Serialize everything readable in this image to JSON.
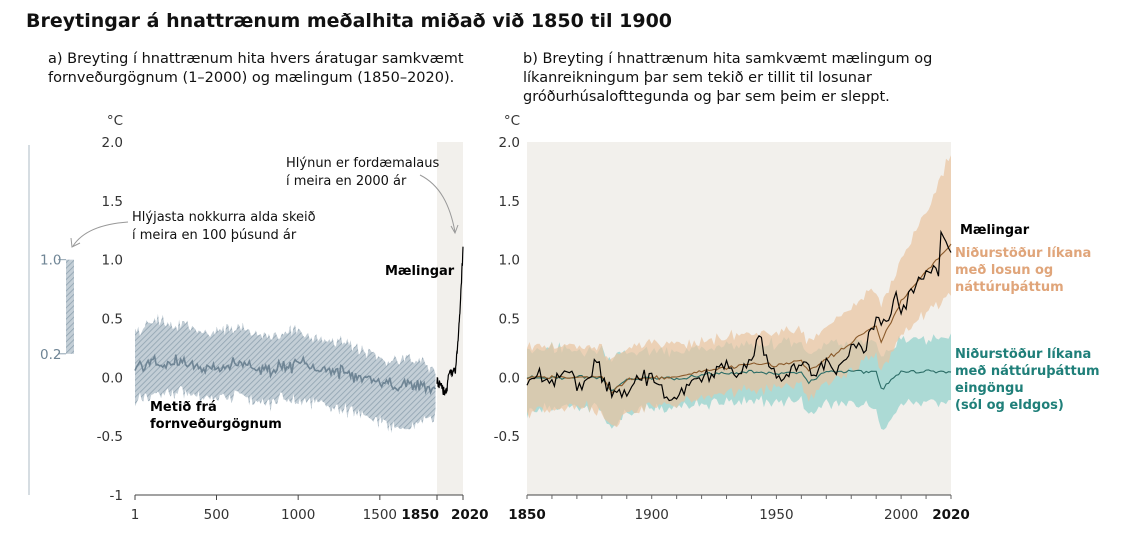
{
  "title": "Breytingar á hnattrænum meðalhita miðað við 1850 til 1900",
  "colors": {
    "proxy": "#8fa2b0",
    "proxy_line": "#6f8595",
    "human": "#e9c39f",
    "human_line": "#8a5a2b",
    "natural": "#8fd0cc",
    "natural_line": "#2b6c66",
    "observed": "#000000",
    "natural_label": "#1f7f79",
    "human_label": "#e0a57a",
    "shade": "#f2f0ec"
  },
  "chart_data": [
    {
      "type": "area",
      "panel": "a",
      "title": "a) Breyting í hnattrænum hita hvers áratugar samkvæmt fornveðurgögnum (1–2000) og mælingum (1850–2020).",
      "ylabel": "°C",
      "ylim": [
        -1,
        2
      ],
      "y_ticks": [
        "2.0",
        "1.5",
        "1.0",
        "0.5",
        "0.0",
        "-0.5",
        "-1"
      ],
      "x_ticks": [
        "1",
        "500",
        "1000",
        "1500",
        "1850",
        "2020"
      ],
      "xlim": [
        1,
        2020
      ],
      "shaded_period": [
        1850,
        2020
      ],
      "series": [
        {
          "name": "Metið frá fornveðurgögnum",
          "x": [
            1,
            100,
            200,
            300,
            400,
            500,
            600,
            700,
            800,
            900,
            1000,
            1100,
            1200,
            1300,
            1400,
            1500,
            1600,
            1700,
            1800,
            1850
          ],
          "values": [
            0.08,
            0.13,
            0.12,
            0.13,
            0.1,
            0.08,
            0.12,
            0.1,
            0.05,
            0.1,
            0.1,
            0.07,
            0.05,
            0.04,
            -0.02,
            -0.02,
            -0.08,
            -0.05,
            -0.1,
            -0.12
          ],
          "lower": [
            -0.18,
            -0.15,
            -0.14,
            -0.12,
            -0.17,
            -0.2,
            -0.16,
            -0.18,
            -0.22,
            -0.2,
            -0.18,
            -0.22,
            -0.25,
            -0.27,
            -0.33,
            -0.38,
            -0.45,
            -0.4,
            -0.35,
            -0.32
          ],
          "upper": [
            0.4,
            0.48,
            0.45,
            0.46,
            0.38,
            0.4,
            0.42,
            0.38,
            0.35,
            0.38,
            0.42,
            0.34,
            0.3,
            0.3,
            0.22,
            0.18,
            0.15,
            0.15,
            0.1,
            0.05
          ]
        },
        {
          "name": "Mælingar",
          "x": [
            1850,
            1870,
            1890,
            1910,
            1930,
            1950,
            1970,
            1990,
            2000,
            2010,
            2020
          ],
          "values": [
            -0.05,
            -0.05,
            -0.12,
            -0.12,
            0.05,
            0.05,
            0.05,
            0.35,
            0.55,
            0.85,
            1.09
          ]
        }
      ],
      "annotations": [
        {
          "text_lines": [
            "Hlýnun er fordæmalaus",
            "í meira en 2000 ár"
          ],
          "at": {
            "x": 2000,
            "y": 1.25
          }
        },
        {
          "text_lines": [
            "Hlýjasta nokkurra alda skeið",
            "í meira en 100 þúsund ár"
          ],
          "at": "bar"
        }
      ],
      "warm_period_bar": {
        "lower": 0.2,
        "upper": 1.0,
        "labels": [
          "1.0",
          "0.2"
        ]
      }
    },
    {
      "type": "line",
      "panel": "b",
      "title": "b) Breyting í hnattrænum hita samkvæmt mælingum og líkanreikningum þar sem tekið er tillit til losunar gróðurhúsalofttegunda og þar sem þeim er sleppt.",
      "ylabel": "°C",
      "ylim": [
        -1,
        2
      ],
      "y_ticks": [
        "2.0",
        "1.5",
        "1.0",
        "0.5",
        "0.0",
        "-0.5"
      ],
      "x_ticks": [
        "1850",
        "1900",
        "1950",
        "2000",
        "2020"
      ],
      "xlim": [
        1850,
        2020
      ],
      "series": [
        {
          "name": "Niðurstöður líkana með losun og náttúruþáttum",
          "x": [
            1850,
            1870,
            1880,
            1884,
            1890,
            1900,
            1910,
            1920,
            1930,
            1940,
            1950,
            1960,
            1963,
            1970,
            1980,
            1990,
            1992,
            2000,
            2010,
            2020
          ],
          "values": [
            0.0,
            0.0,
            0.0,
            -0.12,
            -0.02,
            0.0,
            0.0,
            0.05,
            0.08,
            0.12,
            0.1,
            0.15,
            0.05,
            0.15,
            0.3,
            0.45,
            0.3,
            0.65,
            0.9,
            1.12
          ],
          "lower": [
            -0.3,
            -0.25,
            -0.28,
            -0.45,
            -0.3,
            -0.25,
            -0.22,
            -0.18,
            -0.12,
            -0.1,
            -0.1,
            -0.05,
            -0.18,
            -0.05,
            0.05,
            0.2,
            0.05,
            0.35,
            0.55,
            0.7
          ],
          "upper": [
            0.28,
            0.25,
            0.25,
            0.15,
            0.25,
            0.28,
            0.28,
            0.3,
            0.35,
            0.38,
            0.38,
            0.4,
            0.3,
            0.42,
            0.6,
            0.75,
            0.6,
            1.0,
            1.4,
            1.9
          ]
        },
        {
          "name": "Niðurstöður líkana með náttúruþáttum eingöngu (sól og eldgos)",
          "x": [
            1850,
            1870,
            1880,
            1884,
            1890,
            1900,
            1910,
            1920,
            1930,
            1940,
            1950,
            1960,
            1963,
            1970,
            1980,
            1990,
            1992,
            2000,
            2010,
            2020
          ],
          "values": [
            0.0,
            0.0,
            0.0,
            -0.12,
            -0.02,
            0.0,
            -0.02,
            0.02,
            0.03,
            0.05,
            0.03,
            0.05,
            -0.05,
            0.05,
            0.05,
            0.05,
            -0.1,
            0.05,
            0.05,
            0.05
          ],
          "lower": [
            -0.28,
            -0.25,
            -0.28,
            -0.45,
            -0.3,
            -0.27,
            -0.25,
            -0.22,
            -0.2,
            -0.2,
            -0.22,
            -0.2,
            -0.32,
            -0.22,
            -0.22,
            -0.25,
            -0.45,
            -0.22,
            -0.22,
            -0.22
          ],
          "upper": [
            0.25,
            0.25,
            0.22,
            0.15,
            0.22,
            0.22,
            0.22,
            0.25,
            0.25,
            0.28,
            0.28,
            0.3,
            0.18,
            0.3,
            0.3,
            0.32,
            0.18,
            0.32,
            0.32,
            0.35
          ]
        },
        {
          "name": "Mælingar",
          "x": [
            1850,
            1855,
            1860,
            1865,
            1870,
            1875,
            1878,
            1880,
            1885,
            1890,
            1895,
            1900,
            1905,
            1910,
            1915,
            1920,
            1925,
            1930,
            1935,
            1940,
            1944,
            1945,
            1950,
            1955,
            1960,
            1965,
            1970,
            1975,
            1980,
            1985,
            1990,
            1995,
            1998,
            2000,
            2005,
            2010,
            2015,
            2016,
            2020
          ],
          "values": [
            -0.05,
            0.0,
            -0.03,
            0.05,
            -0.05,
            0.0,
            0.2,
            -0.05,
            -0.15,
            -0.1,
            -0.05,
            0.05,
            -0.15,
            -0.15,
            -0.05,
            0.0,
            0.05,
            0.1,
            0.05,
            0.2,
            0.35,
            0.15,
            0.0,
            0.05,
            0.1,
            0.05,
            0.1,
            0.05,
            0.3,
            0.25,
            0.45,
            0.5,
            0.7,
            0.55,
            0.75,
            0.85,
            0.95,
            1.2,
            1.09
          ]
        }
      ]
    }
  ],
  "labels": {
    "maelingar_a": "Mælingar",
    "proxy_lines": [
      "Metið frá",
      "fornveðurgögnum"
    ],
    "maelingar_b": "Mælingar",
    "human_lines": [
      "Niðurstöður líkana",
      "með losun og",
      "náttúruþáttum"
    ],
    "natural_lines": [
      "Niðurstöður líkana",
      "með náttúruþáttum",
      "eingöngu",
      "(sól og eldgos)"
    ]
  }
}
